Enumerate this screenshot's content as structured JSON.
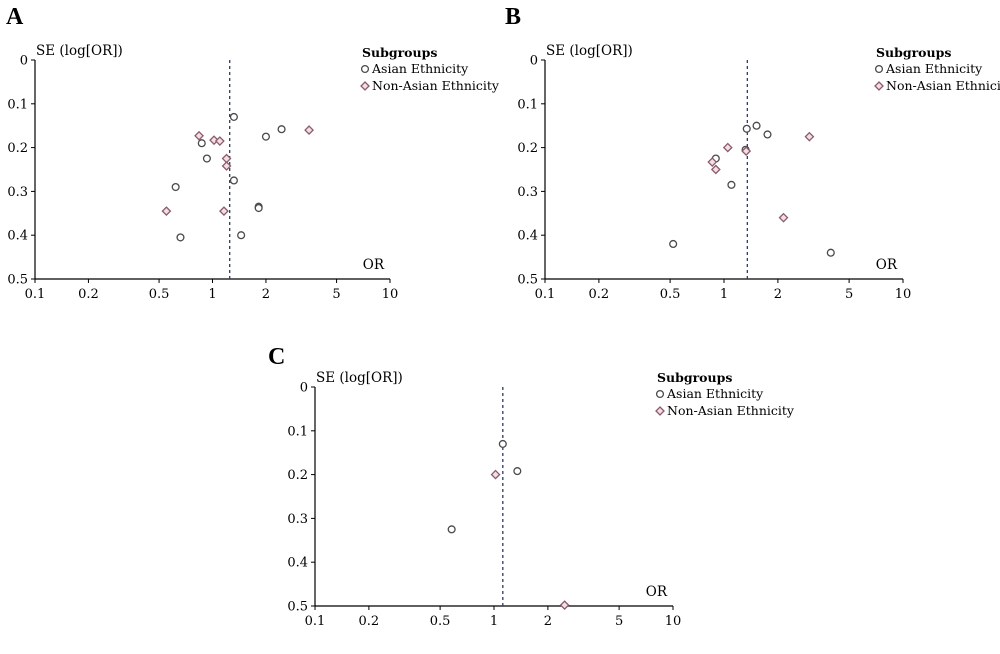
{
  "colors": {
    "asian_stroke": "#4a4a4a",
    "non_asian_stroke": "#8c5a6b",
    "non_asian_fill": "#f0dfe3",
    "ref_line": "#2b3a67"
  },
  "chart_data": [
    {
      "panel": "A",
      "type": "scatter",
      "chart_kind": "funnel plot",
      "ylabel": "SE (log[OR])",
      "xlabel": "OR",
      "x_scale": "log",
      "y_inverted": true,
      "xlim": [
        0.1,
        10
      ],
      "ylim": [
        0,
        0.5
      ],
      "x_ticks": [
        "0.1",
        "0.2",
        "0.5",
        "1",
        "2",
        "5",
        "10"
      ],
      "y_ticks": [
        "0",
        "0.1",
        "0.2",
        "0.3",
        "0.4",
        "0.5"
      ],
      "pooled_or": 1.25,
      "legend_title": "Subgroups",
      "series": [
        {
          "name": "Asian Ethnicity",
          "marker": "circle",
          "points": [
            [
              1.32,
              0.13
            ],
            [
              2.45,
              0.158
            ],
            [
              2.0,
              0.175
            ],
            [
              0.87,
              0.19
            ],
            [
              0.93,
              0.225
            ],
            [
              1.32,
              0.275
            ],
            [
              0.62,
              0.29
            ],
            [
              1.82,
              0.335
            ],
            [
              1.82,
              0.338
            ],
            [
              1.45,
              0.4
            ],
            [
              0.66,
              0.405
            ]
          ]
        },
        {
          "name": "Non-Asian Ethnicity",
          "marker": "diamond",
          "points": [
            [
              3.5,
              0.16
            ],
            [
              0.84,
              0.173
            ],
            [
              1.02,
              0.183
            ],
            [
              1.1,
              0.185
            ],
            [
              1.2,
              0.225
            ],
            [
              1.2,
              0.242
            ],
            [
              1.16,
              0.345
            ],
            [
              0.55,
              0.345
            ]
          ]
        }
      ]
    },
    {
      "panel": "B",
      "type": "scatter",
      "chart_kind": "funnel plot",
      "ylabel": "SE (log[OR])",
      "xlabel": "OR",
      "x_scale": "log",
      "y_inverted": true,
      "xlim": [
        0.1,
        10
      ],
      "ylim": [
        0,
        0.5
      ],
      "x_ticks": [
        "0.1",
        "0.2",
        "0.5",
        "1",
        "2",
        "5",
        "10"
      ],
      "y_ticks": [
        "0",
        "0.1",
        "0.2",
        "0.3",
        "0.4",
        "0.5"
      ],
      "pooled_or": 1.35,
      "legend_title": "Subgroups",
      "series": [
        {
          "name": "Asian Ethnicity",
          "marker": "circle",
          "points": [
            [
              1.52,
              0.15
            ],
            [
              1.34,
              0.157
            ],
            [
              1.75,
              0.17
            ],
            [
              1.32,
              0.205
            ],
            [
              0.9,
              0.225
            ],
            [
              1.1,
              0.285
            ],
            [
              0.52,
              0.42
            ],
            [
              3.95,
              0.44
            ]
          ]
        },
        {
          "name": "Non-Asian Ethnicity",
          "marker": "diamond",
          "points": [
            [
              3.0,
              0.175
            ],
            [
              1.05,
              0.2
            ],
            [
              1.33,
              0.208
            ],
            [
              0.86,
              0.233
            ],
            [
              0.9,
              0.25
            ],
            [
              2.15,
              0.36
            ]
          ]
        }
      ]
    },
    {
      "panel": "C",
      "type": "scatter",
      "chart_kind": "funnel plot",
      "ylabel": "SE (log[OR])",
      "xlabel": "OR",
      "x_scale": "log",
      "y_inverted": true,
      "xlim": [
        0.1,
        10
      ],
      "ylim": [
        0,
        0.5
      ],
      "x_ticks": [
        "0.1",
        "0.2",
        "0.5",
        "1",
        "2",
        "5",
        "10"
      ],
      "y_ticks": [
        "0",
        "0.1",
        "0.2",
        "0.3",
        "0.4",
        "0.5"
      ],
      "pooled_or": 1.12,
      "legend_title": "Subgroups",
      "series": [
        {
          "name": "Asian Ethnicity",
          "marker": "circle",
          "points": [
            [
              1.12,
              0.13
            ],
            [
              1.35,
              0.192
            ],
            [
              0.58,
              0.325
            ]
          ]
        },
        {
          "name": "Non-Asian Ethnicity",
          "marker": "diamond",
          "points": [
            [
              1.02,
              0.2
            ],
            [
              2.48,
              0.498
            ]
          ]
        }
      ]
    }
  ]
}
